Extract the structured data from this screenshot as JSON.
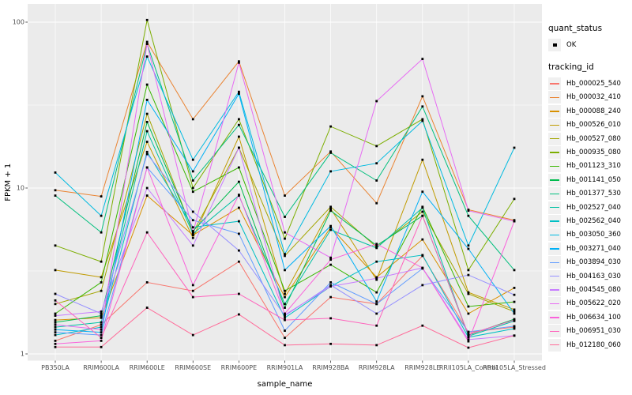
{
  "figure": {
    "xlabel": "sample_name",
    "ylabel": "FPKM + 1"
  },
  "legend": {
    "quant_status": {
      "title": "quant_status",
      "items": [
        {
          "label": "OK",
          "symbol": "point"
        }
      ]
    },
    "tracking_id": {
      "title": "tracking_id"
    }
  },
  "chart_data": {
    "type": "line",
    "title": "",
    "xlabel": "sample_name",
    "ylabel": "FPKM + 1",
    "y_scale": "log10",
    "ylim": [
      0.93,
      128
    ],
    "y_ticks": [
      1,
      10,
      100
    ],
    "y_tick_labels": [
      "1",
      "10",
      "100"
    ],
    "y_minor_breaks": [
      3.162,
      31.62
    ],
    "grid": true,
    "panel_bg": "#EBEBEB",
    "grid_color": "#FFFFFF",
    "point_color": "#000000",
    "legend_position": "right",
    "x_categories": [
      "PB350LA",
      "RRIM600LA",
      "RRIM600LE",
      "RRIM600SE",
      "RRIM600PE",
      "RRIM901LA",
      "RRIM928BA",
      "RRIM928LA",
      "RRIM928LE",
      "RRII105LA_Control",
      "RRII105LA_Stressed"
    ],
    "series": [
      {
        "name": "Hb_000025_540",
        "color": "#F8766D",
        "values": [
          1.2,
          1.5,
          2.7,
          2.4,
          3.6,
          1.25,
          2.2,
          2.0,
          3.9,
          1.35,
          1.45
        ]
      },
      {
        "name": "Hb_000032_410",
        "color": "#EA8331",
        "values": [
          9.7,
          8.9,
          76,
          26,
          58,
          9.0,
          16.6,
          8.1,
          35.7,
          7.4,
          6.4
        ]
      },
      {
        "name": "Hb_000088_240",
        "color": "#D89000",
        "values": [
          1.6,
          1.65,
          9.0,
          5.2,
          7.6,
          2.2,
          5.8,
          2.9,
          4.9,
          1.75,
          2.5
        ]
      },
      {
        "name": "Hb_000526_010",
        "color": "#C09B00",
        "values": [
          3.2,
          2.9,
          19,
          5.0,
          20.4,
          2.3,
          7.5,
          2.8,
          14.8,
          2.35,
          1.85
        ]
      },
      {
        "name": "Hb_000527_080",
        "color": "#A3A500",
        "values": [
          2.0,
          2.4,
          28,
          5.4,
          17.5,
          3.9,
          7.7,
          4.4,
          7.2,
          2.3,
          1.8
        ]
      },
      {
        "name": "Hb_000935_080",
        "color": "#7CAE00",
        "values": [
          4.5,
          3.6,
          103,
          10,
          26,
          4.95,
          23.5,
          17.9,
          26,
          3.2,
          8.6
        ]
      },
      {
        "name": "Hb_001123_310",
        "color": "#39B600",
        "values": [
          1.75,
          2.7,
          42,
          9.5,
          13.3,
          2.4,
          3.45,
          2.35,
          7.7,
          1.93,
          2.06
        ]
      },
      {
        "name": "Hb_001141_050",
        "color": "#00BB4E",
        "values": [
          1.55,
          1.7,
          25,
          5.5,
          10.9,
          1.9,
          7.3,
          4.5,
          6.8,
          1.3,
          1.62
        ]
      },
      {
        "name": "Hb_001377_530",
        "color": "#00BF7D",
        "values": [
          9.0,
          5.4,
          74,
          11.1,
          24,
          6.7,
          16.3,
          11.1,
          31,
          6.8,
          3.2
        ]
      },
      {
        "name": "Hb_002527_040",
        "color": "#00C1A3",
        "values": [
          1.45,
          1.55,
          22,
          5.3,
          9.0,
          2.0,
          5.6,
          4.35,
          7.6,
          1.28,
          1.58
        ]
      },
      {
        "name": "Hb_002562_040",
        "color": "#00BFC4",
        "values": [
          1.3,
          1.45,
          16.5,
          5.8,
          6.3,
          1.65,
          2.55,
          3.6,
          3.94,
          1.26,
          1.42
        ]
      },
      {
        "name": "Hb_003050_360",
        "color": "#00BAE0",
        "values": [
          12.4,
          6.8,
          62,
          14.8,
          38,
          4.0,
          12.6,
          14.1,
          25.4,
          4.5,
          17.5
        ]
      },
      {
        "name": "Hb_003271_040",
        "color": "#00B0F6",
        "values": [
          1.4,
          1.35,
          34,
          12.6,
          37,
          3.2,
          5.9,
          2.07,
          9.5,
          4.3,
          1.75
        ]
      },
      {
        "name": "Hb_003894_030",
        "color": "#619CFF",
        "values": [
          1.35,
          1.3,
          13.3,
          6.4,
          5.3,
          1.38,
          2.7,
          2.0,
          3.27,
          1.36,
          1.47
        ]
      },
      {
        "name": "Hb_004163_030",
        "color": "#9590FF",
        "values": [
          2.3,
          1.75,
          16,
          7.2,
          4.2,
          1.7,
          2.6,
          1.75,
          2.6,
          2.99,
          2.27
        ]
      },
      {
        "name": "Hb_004545_080",
        "color": "#C77CFF",
        "values": [
          1.7,
          1.8,
          10,
          4.5,
          17.5,
          1.72,
          2.55,
          2.86,
          3.3,
          1.22,
          1.29
        ]
      },
      {
        "name": "Hb_005622_020",
        "color": "#E76BF3",
        "values": [
          1.5,
          1.4,
          74,
          5.4,
          57,
          5.4,
          3.8,
          33.4,
          60,
          7.3,
          6.3
        ]
      },
      {
        "name": "Hb_006634_100",
        "color": "#FA62DB",
        "values": [
          1.15,
          1.2,
          13.3,
          2.6,
          9.1,
          1.75,
          3.7,
          4.6,
          3.3,
          1.19,
          6.3
        ]
      },
      {
        "name": "Hb_006951_030",
        "color": "#FF62BC",
        "values": [
          2.1,
          1.25,
          5.4,
          2.2,
          2.3,
          1.6,
          1.64,
          1.48,
          6.8,
          1.31,
          1.6
        ]
      },
      {
        "name": "Hb_012180_060",
        "color": "#FF6A98",
        "values": [
          1.1,
          1.1,
          1.9,
          1.3,
          1.73,
          1.13,
          1.15,
          1.13,
          1.48,
          1.09,
          1.29
        ]
      }
    ]
  }
}
